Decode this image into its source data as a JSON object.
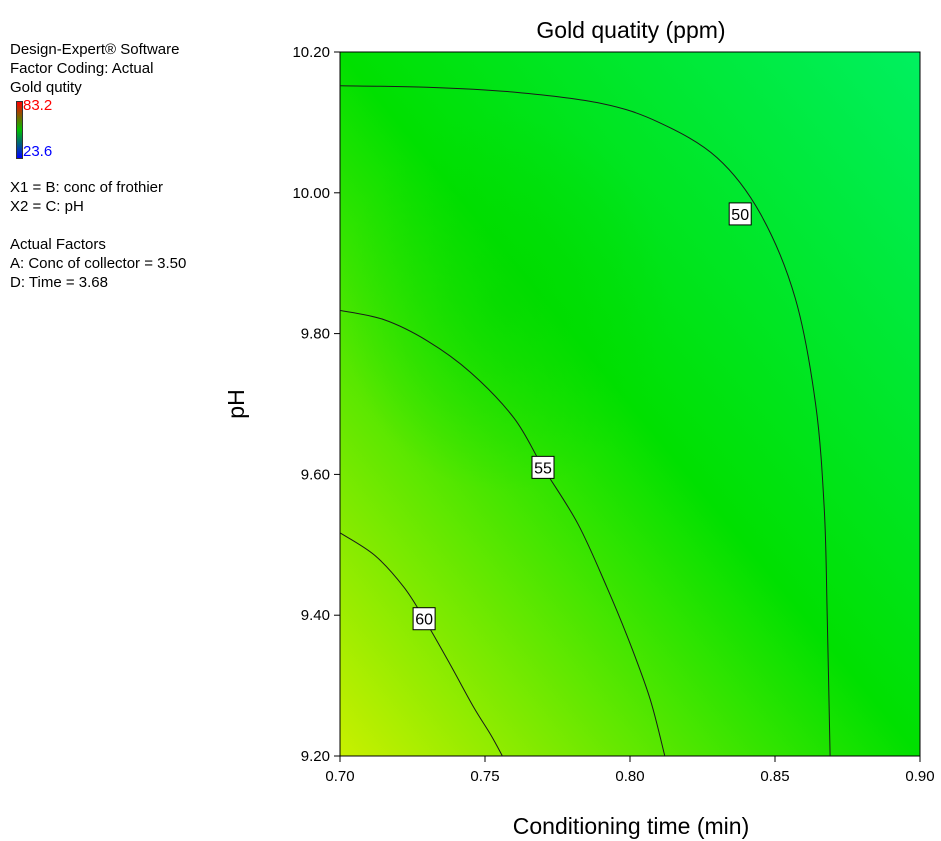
{
  "info_panel": {
    "software": "Design-Expert® Software",
    "coding": "Factor Coding: Actual",
    "response": "Gold qutity",
    "scale_max": "83.2",
    "scale_min": "23.6",
    "scale_max_color": "#ff0000",
    "scale_min_color": "#0000ff",
    "x1": "X1 = B: conc of frothier",
    "x2": "X2 = C: pH",
    "actual_factors_title": "Actual Factors",
    "factor_a": "A: Conc of collector = 3.50",
    "factor_d": "D: Time = 3.68"
  },
  "chart_data": {
    "type": "contour",
    "title": "Gold quatity (ppm)",
    "xlabel": "Conditioning time (min)",
    "ylabel": "pH",
    "xlim": [
      0.7,
      0.9
    ],
    "ylim": [
      9.2,
      10.2
    ],
    "xticks": [
      "0.70",
      "0.75",
      "0.80",
      "0.85",
      "0.90"
    ],
    "yticks": [
      "9.20",
      "9.40",
      "9.60",
      "9.80",
      "10.00",
      "10.20"
    ],
    "fill_colors": {
      "high": "#c8f000",
      "mid": "#00e000",
      "low": "#00f060"
    },
    "contours": [
      {
        "level": "50",
        "label_at": [
          0.838,
          9.97
        ],
        "points": [
          [
            0.7,
            10.152
          ],
          [
            0.73,
            10.15
          ],
          [
            0.76,
            10.143
          ],
          [
            0.79,
            10.127
          ],
          [
            0.81,
            10.1
          ],
          [
            0.83,
            10.05
          ],
          [
            0.845,
            9.97
          ],
          [
            0.857,
            9.85
          ],
          [
            0.864,
            9.7
          ],
          [
            0.867,
            9.55
          ],
          [
            0.868,
            9.4
          ],
          [
            0.869,
            9.2
          ]
        ]
      },
      {
        "level": "55",
        "label_at": [
          0.77,
          9.61
        ],
        "points": [
          [
            0.7,
            9.833
          ],
          [
            0.715,
            9.82
          ],
          [
            0.73,
            9.79
          ],
          [
            0.745,
            9.745
          ],
          [
            0.76,
            9.68
          ],
          [
            0.77,
            9.61
          ],
          [
            0.782,
            9.53
          ],
          [
            0.792,
            9.44
          ],
          [
            0.8,
            9.36
          ],
          [
            0.807,
            9.28
          ],
          [
            0.812,
            9.2
          ]
        ]
      },
      {
        "level": "60",
        "label_at": [
          0.729,
          9.395
        ],
        "points": [
          [
            0.7,
            9.517
          ],
          [
            0.712,
            9.485
          ],
          [
            0.722,
            9.44
          ],
          [
            0.729,
            9.395
          ],
          [
            0.738,
            9.33
          ],
          [
            0.746,
            9.27
          ],
          [
            0.752,
            9.23
          ],
          [
            0.756,
            9.2
          ]
        ]
      }
    ]
  }
}
